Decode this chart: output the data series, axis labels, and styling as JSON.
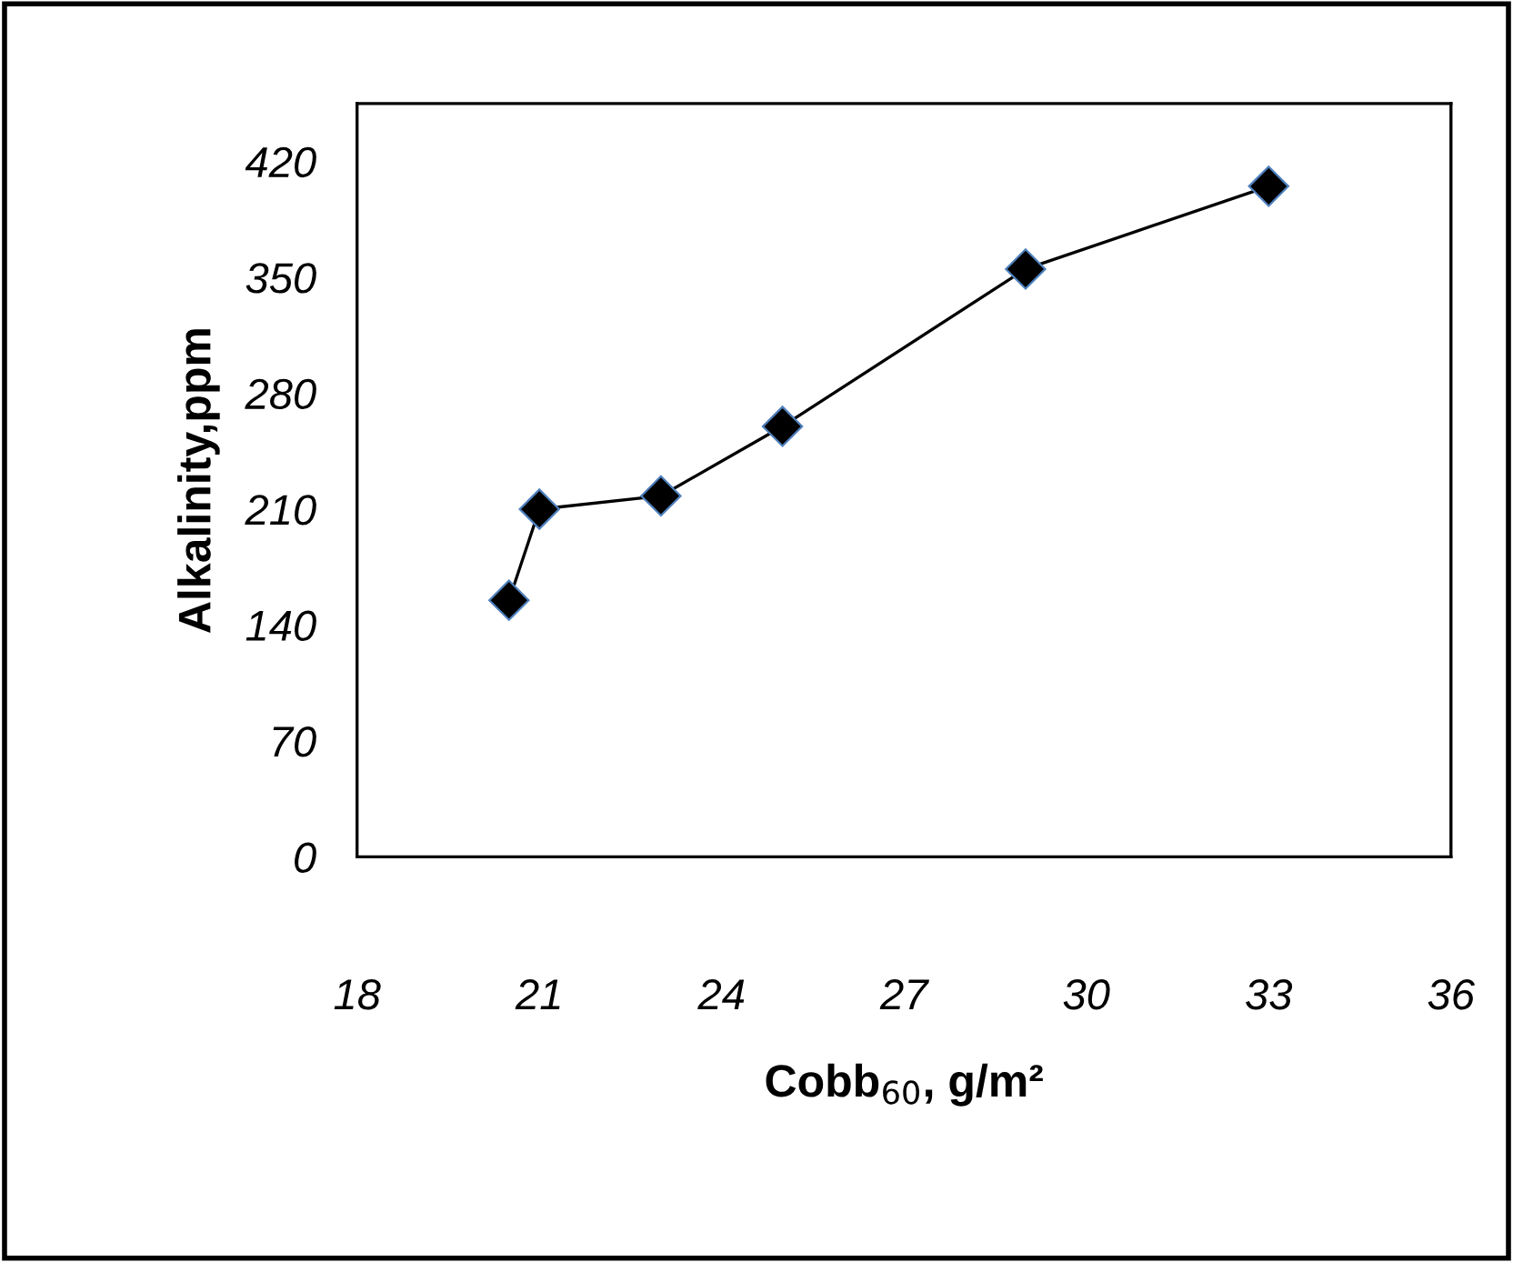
{
  "chart_data": {
    "type": "line",
    "xlabel": "Cobb$_{60}$, g/m²",
    "ylabel": "Alkalinity,ppm",
    "x": [
      20.5,
      21,
      23,
      25,
      29,
      33
    ],
    "series": [
      {
        "color": "#000000",
        "values": [
          155,
          210,
          218,
          260,
          355,
          405
        ]
      }
    ],
    "xlim": [
      18,
      36
    ],
    "xticks": [
      18,
      21,
      24,
      27,
      30,
      33,
      36
    ],
    "ylim": [
      0,
      455
    ],
    "yticks": [
      0,
      70,
      140,
      210,
      280,
      350,
      420
    ],
    "marker": "diamond",
    "line_style": "solid",
    "grid": false,
    "legend": false
  }
}
